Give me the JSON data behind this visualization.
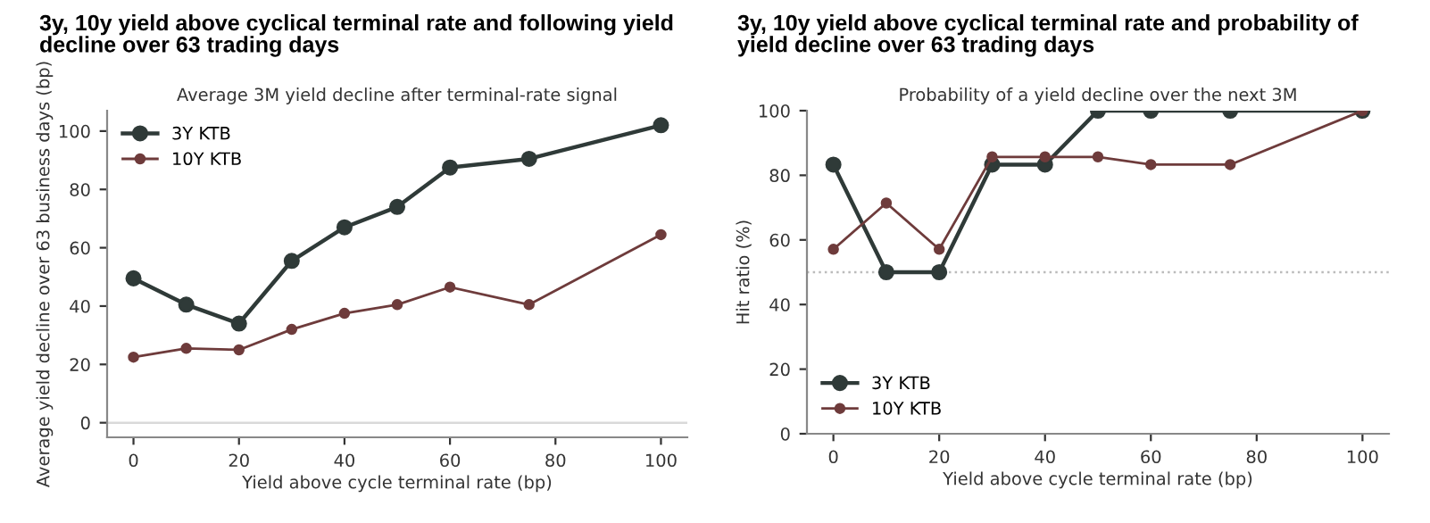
{
  "chart_data": [
    {
      "type": "line",
      "title": "3y, 10y yield above cyclical terminal rate and following yield decline over 63 trading days",
      "subtitle": "Average 3M yield decline after terminal-rate signal",
      "xlabel": "Yield above cycle terminal rate (bp)",
      "ylabel": "Average yield decline over 63 business days (bp)",
      "x": [
        0,
        10,
        20,
        30,
        40,
        50,
        60,
        75,
        100
      ],
      "series": [
        {
          "name": "3Y KTB",
          "color": "#2f3a38",
          "values": [
            49.5,
            40.5,
            34,
            55.5,
            67,
            74,
            87.5,
            90.5,
            102
          ]
        },
        {
          "name": "10Y KTB",
          "color": "#6e3b3b",
          "values": [
            22.5,
            25.5,
            25,
            32,
            37.5,
            40.5,
            46.5,
            40.5,
            64.5
          ]
        }
      ],
      "xlim": [
        -5,
        105
      ],
      "xticks": [
        0,
        20,
        40,
        60,
        80,
        100
      ],
      "ylim": [
        -5,
        107
      ],
      "yticks": [
        0,
        20,
        40,
        60,
        80,
        100
      ],
      "ref_lines": [
        {
          "axis": "y",
          "value": 0,
          "label": null,
          "color": "#d9d9d9",
          "line_style": "solid"
        }
      ],
      "marker": "circle",
      "line_style": "solid",
      "legend": "top left",
      "grid": false
    },
    {
      "type": "line",
      "title": "3y, 10y yield above cyclical terminal rate and probability of yield decline over 63 trading days",
      "subtitle": "Probability of a yield decline over the next 3M",
      "xlabel": "Yield above cycle terminal rate (bp)",
      "ylabel": "Hit ratio (%)",
      "x": [
        0,
        10,
        20,
        30,
        40,
        50,
        60,
        75,
        100
      ],
      "series": [
        {
          "name": "3Y KTB",
          "color": "#2f3a38",
          "values": [
            83.3,
            50,
            50,
            83.3,
            83.3,
            100,
            100,
            100,
            100
          ]
        },
        {
          "name": "10Y KTB",
          "color": "#6e3b3b",
          "values": [
            57.1,
            71.4,
            57.1,
            85.7,
            85.7,
            85.7,
            83.3,
            83.3,
            100
          ]
        }
      ],
      "xlim": [
        -5,
        105
      ],
      "xticks": [
        0,
        20,
        40,
        60,
        80,
        100
      ],
      "ylim": [
        0,
        100
      ],
      "yticks": [
        0,
        20,
        40,
        60,
        80,
        100
      ],
      "ref_lines": [
        {
          "axis": "y",
          "value": 50,
          "label": null,
          "color": "#bbbbbb",
          "line_style": "dotted"
        }
      ],
      "marker": "circle",
      "line_style": "solid",
      "legend": "bottom left",
      "grid": false
    }
  ]
}
